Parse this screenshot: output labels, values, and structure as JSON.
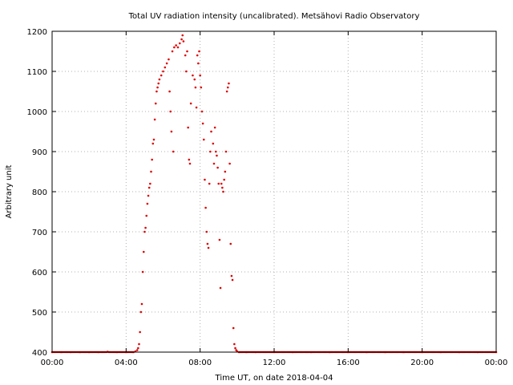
{
  "chart_data": {
    "type": "scatter",
    "title": "Total UV radiation intensity (uncalibrated). Metsähovi Radio Observatory",
    "xlabel": "Time UT, on date 2018-04-04",
    "ylabel": "Arbitrary unit",
    "xlim": [
      0,
      24
    ],
    "ylim": [
      400,
      1200
    ],
    "x_ticks": [
      {
        "value": 0,
        "label": "00:00"
      },
      {
        "value": 4,
        "label": "04:00"
      },
      {
        "value": 8,
        "label": "08:00"
      },
      {
        "value": 12,
        "label": "12:00"
      },
      {
        "value": 16,
        "label": "16:00"
      },
      {
        "value": 20,
        "label": "20:00"
      },
      {
        "value": 24,
        "label": "00:00"
      }
    ],
    "y_ticks": [
      {
        "value": 400,
        "label": "400"
      },
      {
        "value": 500,
        "label": "500"
      },
      {
        "value": 600,
        "label": "600"
      },
      {
        "value": 700,
        "label": "700"
      },
      {
        "value": 800,
        "label": "800"
      },
      {
        "value": 900,
        "label": "900"
      },
      {
        "value": 1000,
        "label": "1000"
      },
      {
        "value": 1100,
        "label": "1100"
      },
      {
        "value": 1200,
        "label": "1200"
      }
    ],
    "grid": true,
    "color": "#e00000",
    "series": [
      {
        "points": [
          [
            0.0,
            400
          ],
          [
            0.5,
            400
          ],
          [
            1.0,
            400
          ],
          [
            1.5,
            400
          ],
          [
            2.0,
            400
          ],
          [
            2.5,
            400
          ],
          [
            3.0,
            401
          ],
          [
            3.5,
            400
          ],
          [
            4.0,
            400
          ],
          [
            4.4,
            400
          ],
          [
            4.5,
            402
          ],
          [
            4.6,
            405
          ],
          [
            4.65,
            410
          ],
          [
            4.7,
            420
          ],
          [
            4.75,
            450
          ],
          [
            4.8,
            500
          ],
          [
            4.85,
            520
          ],
          [
            4.9,
            600
          ],
          [
            4.95,
            650
          ],
          [
            5.0,
            700
          ],
          [
            5.05,
            710
          ],
          [
            5.1,
            740
          ],
          [
            5.15,
            770
          ],
          [
            5.2,
            790
          ],
          [
            5.25,
            810
          ],
          [
            5.3,
            820
          ],
          [
            5.35,
            850
          ],
          [
            5.4,
            880
          ],
          [
            5.45,
            920
          ],
          [
            5.5,
            930
          ],
          [
            5.55,
            980
          ],
          [
            5.6,
            1020
          ],
          [
            5.65,
            1050
          ],
          [
            5.7,
            1060
          ],
          [
            5.75,
            1070
          ],
          [
            5.8,
            1080
          ],
          [
            5.9,
            1090
          ],
          [
            6.0,
            1100
          ],
          [
            6.1,
            1110
          ],
          [
            6.2,
            1120
          ],
          [
            6.3,
            1130
          ],
          [
            6.35,
            1050
          ],
          [
            6.4,
            1000
          ],
          [
            6.45,
            950
          ],
          [
            6.5,
            1150
          ],
          [
            6.55,
            900
          ],
          [
            6.6,
            1160
          ],
          [
            6.7,
            1165
          ],
          [
            6.8,
            1160
          ],
          [
            6.9,
            1170
          ],
          [
            7.0,
            1180
          ],
          [
            7.05,
            1190
          ],
          [
            7.1,
            1175
          ],
          [
            7.2,
            1140
          ],
          [
            7.25,
            1100
          ],
          [
            7.3,
            1150
          ],
          [
            7.35,
            960
          ],
          [
            7.4,
            880
          ],
          [
            7.45,
            870
          ],
          [
            7.5,
            1020
          ],
          [
            7.6,
            1090
          ],
          [
            7.7,
            1080
          ],
          [
            7.75,
            1060
          ],
          [
            7.8,
            1010
          ],
          [
            7.85,
            1140
          ],
          [
            7.9,
            1120
          ],
          [
            7.95,
            1150
          ],
          [
            8.0,
            1090
          ],
          [
            8.05,
            1060
          ],
          [
            8.1,
            1000
          ],
          [
            8.15,
            970
          ],
          [
            8.2,
            930
          ],
          [
            8.25,
            830
          ],
          [
            8.3,
            760
          ],
          [
            8.35,
            700
          ],
          [
            8.4,
            670
          ],
          [
            8.45,
            660
          ],
          [
            8.5,
            820
          ],
          [
            8.55,
            900
          ],
          [
            8.6,
            950
          ],
          [
            8.7,
            920
          ],
          [
            8.75,
            870
          ],
          [
            8.8,
            960
          ],
          [
            8.85,
            900
          ],
          [
            8.9,
            890
          ],
          [
            8.95,
            860
          ],
          [
            9.0,
            820
          ],
          [
            9.05,
            680
          ],
          [
            9.1,
            560
          ],
          [
            9.15,
            820
          ],
          [
            9.2,
            810
          ],
          [
            9.25,
            800
          ],
          [
            9.3,
            830
          ],
          [
            9.35,
            850
          ],
          [
            9.4,
            900
          ],
          [
            9.45,
            1050
          ],
          [
            9.5,
            1060
          ],
          [
            9.55,
            1070
          ],
          [
            9.6,
            870
          ],
          [
            9.65,
            670
          ],
          [
            9.7,
            590
          ],
          [
            9.75,
            580
          ],
          [
            9.8,
            460
          ],
          [
            9.85,
            420
          ],
          [
            9.9,
            410
          ],
          [
            9.95,
            405
          ],
          [
            10.0,
            402
          ],
          [
            10.1,
            400
          ],
          [
            10.5,
            400
          ],
          [
            11.0,
            400
          ],
          [
            12.0,
            400
          ],
          [
            13.0,
            400
          ],
          [
            14.0,
            400
          ],
          [
            15.0,
            400
          ],
          [
            16.0,
            400
          ],
          [
            17.0,
            400
          ],
          [
            18.0,
            400
          ],
          [
            19.0,
            400
          ],
          [
            20.0,
            400
          ],
          [
            21.0,
            400
          ],
          [
            22.0,
            400
          ],
          [
            23.0,
            400
          ],
          [
            24.0,
            400
          ]
        ]
      }
    ]
  }
}
